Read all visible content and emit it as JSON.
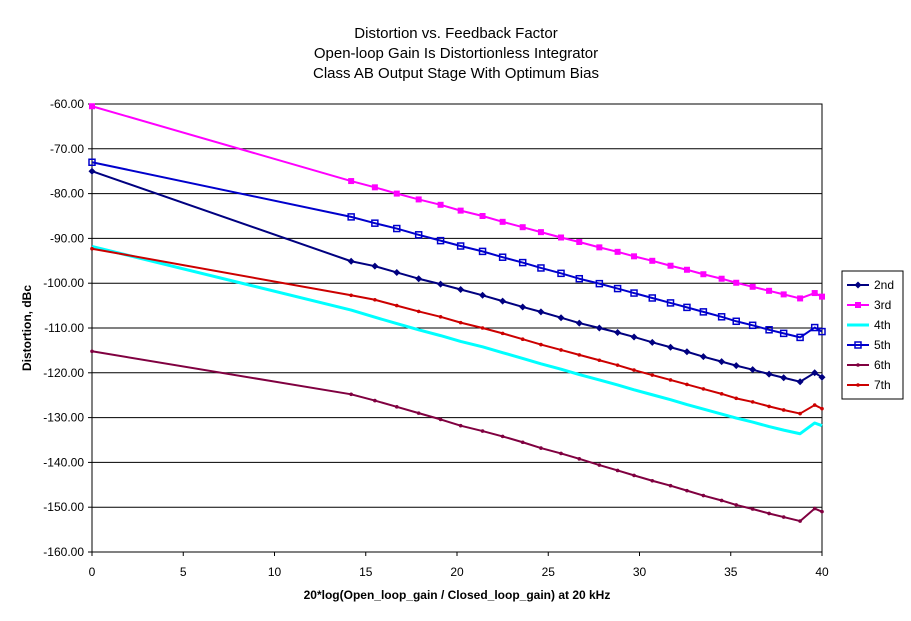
{
  "chart_data": {
    "type": "line",
    "title": [
      "Distortion vs. Feedback Factor",
      "Open-loop Gain Is Distortionless Integrator",
      "Class AB Output Stage With Optimum Bias"
    ],
    "xlabel": "20*log(Open_loop_gain / Closed_loop_gain) at 20 kHz",
    "ylabel": "Distortion, dBc",
    "xlim": [
      0,
      40
    ],
    "ylim": [
      -160,
      -60
    ],
    "xticks": [
      0,
      5,
      10,
      15,
      20,
      25,
      30,
      35,
      40
    ],
    "xtick_labels": [
      "0",
      "5",
      "10",
      "15",
      "20",
      "25",
      "30",
      "35",
      "40"
    ],
    "yticks": [
      -60,
      -70,
      -80,
      -90,
      -100,
      -110,
      -120,
      -130,
      -140,
      -150,
      -160
    ],
    "ytick_labels": [
      "-60.00",
      "-70.00",
      "-80.00",
      "-90.00",
      "-100.00",
      "-110.00",
      "-120.00",
      "-130.00",
      "-140.00",
      "-150.00",
      "-160.00"
    ],
    "grid": "horizontal",
    "legend_position": "right",
    "x": [
      0,
      14.2,
      15.5,
      16.7,
      17.9,
      19.1,
      20.2,
      21.4,
      22.5,
      23.6,
      24.6,
      25.7,
      26.7,
      27.8,
      28.8,
      29.7,
      30.7,
      31.7,
      32.6,
      33.5,
      34.5,
      35.3,
      36.2,
      37.1,
      37.9,
      38.8,
      39.6,
      40
    ],
    "series": [
      {
        "name": "2nd",
        "color": "#000080",
        "marker": "diamond",
        "values": [
          -75.0,
          -95.1,
          -96.2,
          -97.6,
          -99.0,
          -100.2,
          -101.4,
          -102.7,
          -104.0,
          -105.3,
          -106.4,
          -107.7,
          -108.9,
          -110.0,
          -111.0,
          -112.0,
          -113.2,
          -114.3,
          -115.3,
          -116.4,
          -117.5,
          -118.4,
          -119.3,
          -120.3,
          -121.1,
          -122.0,
          -120.0,
          -121.0
        ],
        "extra_points": [
          [
            -0.0,
            -75.0
          ]
        ]
      },
      {
        "name": "3rd",
        "color": "#ff00ff",
        "marker": "square",
        "values": [
          -60.5,
          -77.2,
          -78.6,
          -80.0,
          -81.3,
          -82.5,
          -83.8,
          -85.0,
          -86.3,
          -87.5,
          -88.6,
          -89.8,
          -90.8,
          -92.0,
          -93.0,
          -94.0,
          -95.0,
          -96.1,
          -97.0,
          -98.0,
          -99.0,
          -99.9,
          -100.8,
          -101.7,
          -102.5,
          -103.4,
          -102.2,
          -103.0
        ]
      },
      {
        "name": "4th",
        "color": "#00ffff",
        "marker": "none",
        "values": [
          -91.8,
          -106.0,
          -107.6,
          -109.0,
          -110.4,
          -111.7,
          -113.0,
          -114.2,
          -115.5,
          -116.8,
          -118.0,
          -119.2,
          -120.4,
          -121.6,
          -122.7,
          -123.8,
          -124.9,
          -126.0,
          -127.1,
          -128.1,
          -129.2,
          -130.1,
          -131.0,
          -132.0,
          -132.8,
          -133.6,
          -131.2,
          -131.8
        ]
      },
      {
        "name": "5th",
        "color": "#0000cc",
        "marker": "square-open",
        "values": [
          -73.0,
          -85.2,
          -86.6,
          -87.8,
          -89.2,
          -90.5,
          -91.7,
          -92.9,
          -94.2,
          -95.4,
          -96.6,
          -97.8,
          -99.0,
          -100.1,
          -101.2,
          -102.2,
          -103.3,
          -104.4,
          -105.4,
          -106.4,
          -107.5,
          -108.5,
          -109.4,
          -110.4,
          -111.2,
          -112.1,
          -109.9,
          -110.8
        ]
      },
      {
        "name": "6th",
        "color": "#800040",
        "marker": "dot",
        "values": [
          -115.2,
          -124.8,
          -126.2,
          -127.6,
          -129.0,
          -130.4,
          -131.8,
          -133.0,
          -134.2,
          -135.5,
          -136.8,
          -138.0,
          -139.2,
          -140.6,
          -141.8,
          -142.9,
          -144.1,
          -145.2,
          -146.3,
          -147.4,
          -148.5,
          -149.5,
          -150.4,
          -151.4,
          -152.2,
          -153.1,
          -150.3,
          -151.0
        ]
      },
      {
        "name": "7th",
        "color": "#cc0000",
        "marker": "dot",
        "values": [
          -92.3,
          -102.7,
          -103.7,
          -105.0,
          -106.3,
          -107.5,
          -108.8,
          -110.0,
          -111.2,
          -112.5,
          -113.7,
          -114.9,
          -116.0,
          -117.2,
          -118.3,
          -119.4,
          -120.5,
          -121.6,
          -122.6,
          -123.6,
          -124.7,
          -125.7,
          -126.5,
          -127.5,
          -128.3,
          -129.1,
          -127.2,
          -128.0
        ]
      }
    ]
  }
}
